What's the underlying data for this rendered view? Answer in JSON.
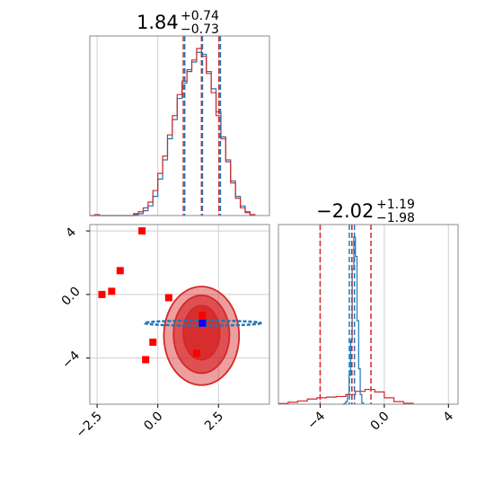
{
  "chart_data": [
    {
      "panel": "top-left",
      "type": "histogram",
      "title": {
        "value": "1.84",
        "plus": "+0.74",
        "minus": "−0.73"
      },
      "xlim": [
        -2.8,
        4.6
      ],
      "xticks": [
        -2.5,
        0.0,
        2.5
      ],
      "grid": true,
      "series": [
        {
          "color": "#1f77b4",
          "bin_edges": [
            -2.8,
            -2.6,
            -2.4,
            -2.2,
            -2.0,
            -1.8,
            -1.6,
            -1.4,
            -1.2,
            -1.0,
            -0.8,
            -0.6,
            -0.4,
            -0.2,
            0.0,
            0.2,
            0.4,
            0.6,
            0.8,
            1.0,
            1.2,
            1.4,
            1.6,
            1.8,
            2.0,
            2.2,
            2.4,
            2.6,
            2.8,
            3.0,
            3.2,
            3.4,
            3.6,
            3.8,
            4.0
          ],
          "counts": [
            0,
            0,
            0,
            0,
            0,
            0,
            0,
            0,
            0,
            1,
            2,
            5,
            10,
            20,
            38,
            58,
            80,
            100,
            122,
            138,
            152,
            160,
            170,
            168,
            150,
            132,
            108,
            82,
            58,
            36,
            20,
            10,
            4,
            1
          ]
        },
        {
          "color": "#d62728",
          "bin_edges": [
            -2.8,
            -2.6,
            -2.4,
            -2.2,
            -2.0,
            -1.8,
            -1.6,
            -1.4,
            -1.2,
            -1.0,
            -0.8,
            -0.6,
            -0.4,
            -0.2,
            0.0,
            0.2,
            0.4,
            0.6,
            0.8,
            1.0,
            1.2,
            1.4,
            1.6,
            1.8,
            2.0,
            2.2,
            2.4,
            2.6,
            2.8,
            3.0,
            3.2,
            3.4,
            3.6,
            3.8,
            4.0
          ],
          "counts": [
            0,
            1,
            0,
            0,
            0,
            0,
            0,
            0,
            0,
            2,
            4,
            8,
            14,
            26,
            44,
            62,
            84,
            104,
            126,
            140,
            150,
            162,
            174,
            166,
            148,
            128,
            104,
            80,
            56,
            34,
            18,
            8,
            3,
            1
          ]
        }
      ],
      "quantile_lines": [
        {
          "color": "#1f77b4",
          "x": [
            1.11,
            1.84,
            2.58
          ]
        },
        {
          "color": "#d62728",
          "x": [
            1.05,
            1.8,
            2.52
          ]
        }
      ]
    },
    {
      "panel": "bottom-right",
      "type": "histogram",
      "title": {
        "value": "−2.02",
        "plus": "+1.19",
        "minus": "−1.98"
      },
      "xlim": [
        -6.6,
        4.6
      ],
      "xticks": [
        -4,
        0,
        4
      ],
      "grid": true,
      "series": [
        {
          "color": "#1f77b4",
          "bin_edges": [
            -2.6,
            -2.5,
            -2.4,
            -2.3,
            -2.2,
            -2.1,
            -2.0,
            -1.9,
            -1.8,
            -1.7,
            -1.6,
            -1.5,
            -1.4,
            -1.3
          ],
          "counts": [
            0,
            2,
            8,
            30,
            90,
            200,
            420,
            520,
            460,
            260,
            110,
            30,
            4
          ]
        },
        {
          "color": "#d62728",
          "bin_edges": [
            -6.6,
            -6.0,
            -5.4,
            -4.8,
            -4.2,
            -3.6,
            -3.0,
            -2.4,
            -1.8,
            -1.2,
            -0.6,
            0.0,
            0.6,
            1.2,
            1.8
          ],
          "counts": [
            2,
            6,
            10,
            16,
            20,
            22,
            24,
            30,
            40,
            46,
            38,
            20,
            8,
            3
          ]
        }
      ],
      "quantile_lines": [
        {
          "color": "#1f77b4",
          "x": [
            -2.18,
            -2.02,
            -1.86
          ]
        },
        {
          "color": "#d62728",
          "x": [
            -4.0,
            -2.02,
            -0.83
          ]
        }
      ]
    },
    {
      "panel": "bottom-left",
      "type": "scatter",
      "xlim": [
        -2.8,
        4.6
      ],
      "ylim": [
        -6.9,
        4.4
      ],
      "xticks": [
        -2.5,
        0.0,
        2.5
      ],
      "yticks": [
        -4,
        0,
        4
      ],
      "grid": true,
      "red_contours": [
        {
          "cx": 1.8,
          "cy": -2.6,
          "rx": 1.55,
          "ry": 3.1,
          "opacity": 0.45
        },
        {
          "cx": 1.8,
          "cy": -2.5,
          "rx": 1.15,
          "ry": 2.45,
          "opacity": 0.65
        },
        {
          "cx": 1.8,
          "cy": -2.4,
          "rx": 0.75,
          "ry": 1.7,
          "opacity": 0.85
        }
      ],
      "blue_contour": {
        "cx": 1.85,
        "cy": -1.8,
        "rx": 2.4,
        "ry": 0.16
      },
      "red_points": [
        {
          "x": -2.3,
          "y": 0.0
        },
        {
          "x": -1.9,
          "y": 0.2
        },
        {
          "x": -1.55,
          "y": 1.5
        },
        {
          "x": -0.65,
          "y": 4.0
        },
        {
          "x": -0.5,
          "y": -4.1
        },
        {
          "x": -0.2,
          "y": -3.0
        },
        {
          "x": 0.45,
          "y": -0.2
        },
        {
          "x": 1.6,
          "y": -3.7
        },
        {
          "x": 1.84,
          "y": -1.3
        }
      ],
      "blue_points": [
        {
          "x": 1.84,
          "y": -1.8
        }
      ]
    }
  ]
}
